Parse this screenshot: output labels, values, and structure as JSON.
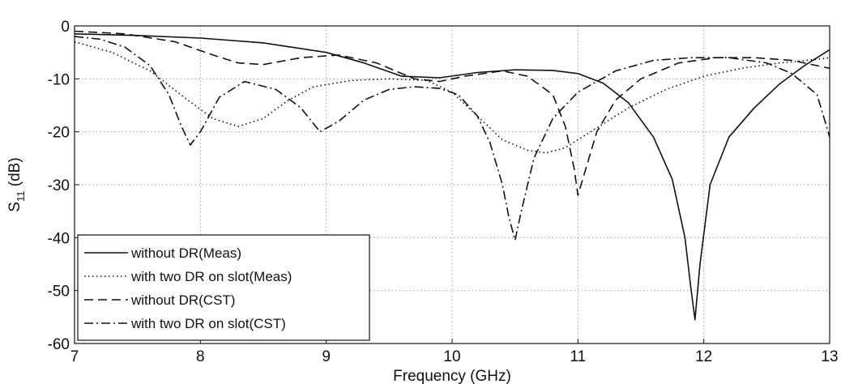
{
  "chart_data": {
    "type": "line",
    "xlabel": "Frequency (GHz)",
    "ylabel_main": "S",
    "ylabel_sub": "11",
    "ylabel_unit": " (dB)",
    "xlim": [
      7,
      13
    ],
    "ylim": [
      -60,
      0
    ],
    "xticks": [
      7,
      8,
      9,
      10,
      11,
      12,
      13
    ],
    "yticks": [
      0,
      -10,
      -20,
      -30,
      -40,
      -50,
      -60
    ],
    "grid": true,
    "legend_position": "bottom-left",
    "series": [
      {
        "name": "without DR(Meas)",
        "dash": "solid",
        "x": [
          7.0,
          7.5,
          8.0,
          8.5,
          9.0,
          9.3,
          9.6,
          9.9,
          10.2,
          10.5,
          10.8,
          11.0,
          11.2,
          11.4,
          11.6,
          11.75,
          11.85,
          11.9,
          11.93,
          11.97,
          12.05,
          12.2,
          12.4,
          12.6,
          12.8,
          13.0
        ],
        "y": [
          -1.5,
          -1.8,
          -2.3,
          -3.2,
          -5.0,
          -7.0,
          -9.5,
          -9.8,
          -8.8,
          -8.3,
          -8.4,
          -9.0,
          -10.8,
          -14.5,
          -21.0,
          -29.0,
          -40.0,
          -50.0,
          -55.5,
          -45.0,
          -30.0,
          -21.0,
          -15.5,
          -11.0,
          -7.5,
          -4.5
        ]
      },
      {
        "name": "with two DR on slot(Meas)",
        "dash": "dotted",
        "x": [
          7.0,
          7.3,
          7.6,
          7.9,
          8.1,
          8.3,
          8.5,
          8.7,
          8.9,
          9.2,
          9.5,
          9.8,
          10.0,
          10.2,
          10.4,
          10.6,
          10.75,
          10.9,
          11.1,
          11.4,
          11.7,
          12.0,
          12.3,
          12.6,
          12.9,
          13.0
        ],
        "y": [
          -3.0,
          -5.0,
          -8.5,
          -14.0,
          -17.5,
          -19.0,
          -17.5,
          -14.0,
          -11.5,
          -10.3,
          -10.0,
          -10.3,
          -12.5,
          -17.0,
          -21.5,
          -23.5,
          -24.0,
          -23.0,
          -20.0,
          -15.5,
          -12.0,
          -9.5,
          -8.0,
          -7.0,
          -6.3,
          -6.0
        ]
      },
      {
        "name": "without DR(CST)",
        "dash": "dashed",
        "x": [
          7.0,
          7.4,
          7.8,
          8.1,
          8.3,
          8.5,
          8.8,
          9.1,
          9.4,
          9.7,
          9.9,
          10.1,
          10.4,
          10.6,
          10.8,
          10.9,
          10.97,
          11.0,
          11.05,
          11.15,
          11.3,
          11.5,
          11.8,
          12.1,
          12.4,
          12.7,
          13.0
        ],
        "y": [
          -1.0,
          -1.5,
          -3.0,
          -5.5,
          -7.0,
          -7.3,
          -6.0,
          -5.5,
          -7.0,
          -10.0,
          -10.5,
          -9.5,
          -8.5,
          -9.5,
          -13.0,
          -19.0,
          -27.0,
          -32.0,
          -28.0,
          -20.0,
          -14.0,
          -10.0,
          -7.0,
          -6.0,
          -6.0,
          -6.5,
          -8.0
        ]
      },
      {
        "name": "with two DR on slot(CST)",
        "dash": "dashdot",
        "x": [
          7.0,
          7.2,
          7.4,
          7.6,
          7.75,
          7.85,
          7.92,
          8.0,
          8.15,
          8.35,
          8.6,
          8.8,
          8.95,
          9.1,
          9.3,
          9.5,
          9.7,
          9.9,
          10.05,
          10.2,
          10.3,
          10.4,
          10.45,
          10.5,
          10.55,
          10.65,
          10.8,
          11.0,
          11.3,
          11.6,
          11.9,
          12.2,
          12.5,
          12.7,
          12.9,
          13.0
        ],
        "y": [
          -2.0,
          -2.5,
          -4.0,
          -7.5,
          -13.0,
          -19.0,
          -22.5,
          -20.0,
          -13.5,
          -10.5,
          -12.0,
          -15.5,
          -20.0,
          -18.0,
          -14.0,
          -12.0,
          -11.5,
          -11.8,
          -13.0,
          -17.0,
          -22.0,
          -30.0,
          -36.0,
          -40.5,
          -35.0,
          -25.0,
          -17.5,
          -12.5,
          -8.5,
          -6.5,
          -6.0,
          -6.0,
          -7.0,
          -9.0,
          -13.0,
          -21.0
        ]
      }
    ]
  }
}
